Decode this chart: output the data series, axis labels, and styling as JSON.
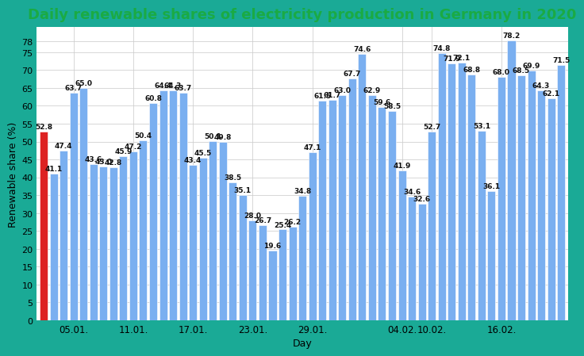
{
  "title": "Daily renewable shares of electricity production in Germany in 2020",
  "xlabel": "Day",
  "ylabel": "Renewable share (%)",
  "background_outer": "#1aaa96",
  "background_inner": "#ffffff",
  "bar_color": "#7aaff0",
  "bar_color_first": "#dd2222",
  "grid_color": "#cccccc",
  "title_color": "#1aaa44",
  "values": [
    52.8,
    41.1,
    47.4,
    63.7,
    65.0,
    43.6,
    43.0,
    42.8,
    45.9,
    47.2,
    50.4,
    60.8,
    64.4,
    64.3,
    63.7,
    43.4,
    45.5,
    50.1,
    49.8,
    38.5,
    35.1,
    28.0,
    26.7,
    19.6,
    25.4,
    26.2,
    34.8,
    47.1,
    61.5,
    61.7,
    63.0,
    67.7,
    74.6,
    62.9,
    59.6,
    58.5,
    41.9,
    34.6,
    32.6,
    52.7,
    74.8,
    71.9,
    72.1,
    68.8,
    53.1,
    36.1,
    68.0,
    78.2,
    68.5,
    69.9,
    64.3,
    62.1,
    71.5
  ],
  "tick_labels": [
    "05.01.",
    "11.01.",
    "17.01.",
    "23.01.",
    "29.01.",
    "04.02.",
    "10.02.",
    "16.02."
  ],
  "tick_positions": [
    3,
    9,
    15,
    21,
    27,
    36,
    39,
    46
  ],
  "ylim": [
    0,
    82
  ],
  "yticks": [
    0,
    5,
    10,
    15,
    20,
    25,
    30,
    35,
    40,
    45,
    50,
    55,
    60,
    65,
    70,
    75,
    78
  ],
  "label_fontsize": 6.5,
  "title_fontsize": 13,
  "axis_label_fontsize": 9
}
